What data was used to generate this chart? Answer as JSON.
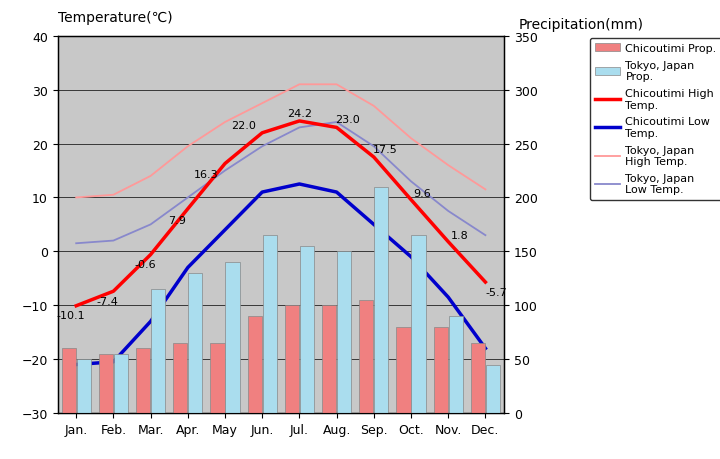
{
  "months": [
    "Jan.",
    "Feb.",
    "Mar.",
    "Apr.",
    "May",
    "Jun.",
    "Jul.",
    "Aug.",
    "Sep.",
    "Oct.",
    "Nov.",
    "Dec."
  ],
  "chicoutimi_high": [
    -10.1,
    -7.4,
    -0.6,
    7.9,
    16.3,
    22.0,
    24.2,
    23.0,
    17.5,
    9.6,
    1.8,
    -5.7
  ],
  "chicoutimi_low": [
    -21.0,
    -20.5,
    -13.0,
    -3.0,
    4.0,
    11.0,
    12.5,
    11.0,
    5.0,
    -1.0,
    -8.5,
    -18.0
  ],
  "tokyo_high": [
    10.0,
    10.5,
    14.0,
    19.5,
    24.0,
    27.5,
    31.0,
    31.0,
    27.0,
    21.0,
    16.0,
    11.5
  ],
  "tokyo_low": [
    1.5,
    2.0,
    5.0,
    10.0,
    15.0,
    19.5,
    23.0,
    24.0,
    19.5,
    13.0,
    7.5,
    3.0
  ],
  "chicoutimi_prcp": [
    60,
    55,
    60,
    65,
    65,
    90,
    100,
    100,
    105,
    80,
    80,
    65
  ],
  "tokyo_prcp": [
    50,
    55,
    115,
    130,
    140,
    165,
    155,
    150,
    210,
    165,
    90,
    45
  ],
  "temp_ylim": [
    -30,
    40
  ],
  "prcp_ylim": [
    0,
    350
  ],
  "temp_yticks": [
    -30,
    -20,
    -10,
    0,
    10,
    20,
    30,
    40
  ],
  "prcp_yticks": [
    0,
    50,
    100,
    150,
    200,
    250,
    300,
    350
  ],
  "bg_color": "#c8c8c8",
  "chicoutimi_prcp_color": "#f08080",
  "tokyo_prcp_color": "#aaddee",
  "chicoutimi_high_color": "#ff0000",
  "chicoutimi_low_color": "#0000cc",
  "tokyo_high_color": "#ff9999",
  "tokyo_low_color": "#8888cc",
  "ch_high_labels": [
    "-10.1",
    "-7.4",
    "-0.6",
    "7.9",
    "16.3",
    "22.0",
    "24.2",
    "23.0",
    "17.5",
    "9.6",
    "1.8",
    "-5.7"
  ],
  "legend_labels": [
    "Chicoutimi Prop.",
    "Tokyo, Japan\nProp.",
    "Chicoutimi High\nTemp.",
    "Chicoutimi Low\nTemp.",
    "Tokyo, Japan\nHigh Temp.",
    "Tokyo, Japan\nLow Temp."
  ],
  "title_left": "Temperature(℃)",
  "title_right": "Precipitation(mm)"
}
